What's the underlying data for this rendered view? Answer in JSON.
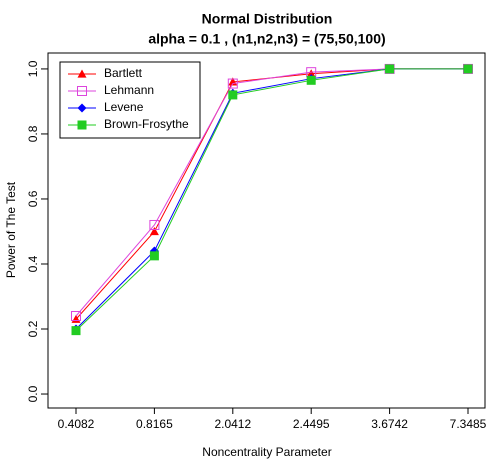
{
  "chart_data": {
    "type": "line",
    "title": "Normal Distribution",
    "subtitle": "alpha = 0.1 , (n1,n2,n3) = (75,50,100)",
    "x_label": "Noncentrality Parameter",
    "y_label": "Power of The Test",
    "categories": [
      "0.4082",
      "0.8165",
      "2.0412",
      "2.4495",
      "3.6742",
      "7.3485"
    ],
    "series": [
      {
        "name": "Bartlett",
        "color": "#ff0000",
        "marker": "triangle",
        "values": [
          0.23,
          0.5,
          0.96,
          0.985,
          1.0,
          1.0
        ]
      },
      {
        "name": "Lehmann",
        "color": "#dd44dd",
        "marker": "open-square",
        "values": [
          0.24,
          0.52,
          0.955,
          0.99,
          1.0,
          1.0
        ]
      },
      {
        "name": "Levene",
        "color": "#0000ff",
        "marker": "diamond",
        "values": [
          0.2,
          0.44,
          0.925,
          0.97,
          1.0,
          1.0
        ]
      },
      {
        "name": "Brown-Frosythe",
        "color": "#22cc22",
        "marker": "square",
        "values": [
          0.195,
          0.425,
          0.92,
          0.965,
          1.0,
          1.0
        ]
      }
    ],
    "ylim": [
      -0.043,
      1.049
    ],
    "yticks": [
      {
        "value": 0,
        "label": "0.0"
      },
      0.2,
      0.4,
      0.6,
      0.8,
      {
        "value": 1,
        "label": "1.0"
      }
    ],
    "legend": "top-left"
  }
}
